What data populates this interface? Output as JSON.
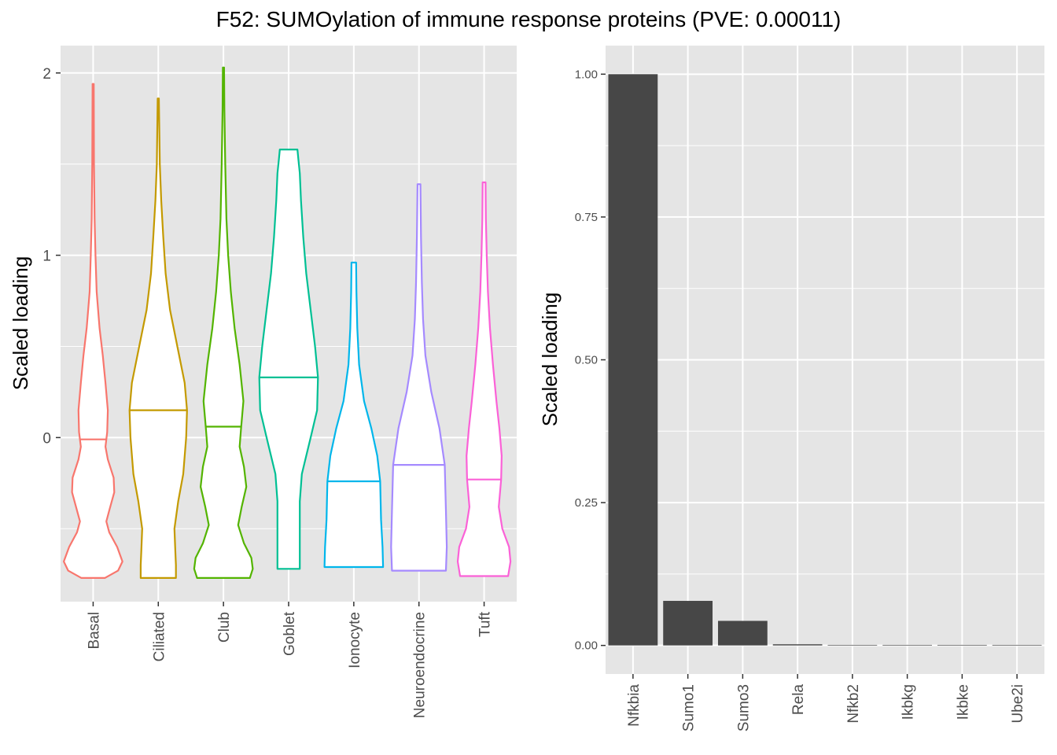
{
  "title": "F52: SUMOylation of immune response proteins (PVE: 0.00011)",
  "colors": {
    "panel_bg": "#e5e5e5",
    "grid": "#ffffff",
    "tick_text": "#4d4d4d",
    "bar_fill": "#474747",
    "Basal": "#f8766d",
    "Ciliated": "#c49a00",
    "Club": "#53b400",
    "Goblet": "#00c094",
    "Ionocyte": "#00b6eb",
    "Neuroendocrine": "#a58aff",
    "Tuft": "#fb61d7"
  },
  "chart_data": [
    {
      "type": "violin",
      "ylabel": "Scaled loading",
      "xlabel": "",
      "ylim": [
        -0.9,
        2.15
      ],
      "y_ticks": [
        "0",
        "1",
        "2"
      ],
      "grid": true,
      "categories": [
        "Basal",
        "Ciliated",
        "Club",
        "Goblet",
        "Ionocyte",
        "Neuroendocrine",
        "Tuft"
      ],
      "series": [
        {
          "category": "Basal",
          "min": -0.77,
          "max": 1.94,
          "median": -0.01,
          "profile": [
            [
              -0.77,
              0.4
            ],
            [
              -0.73,
              0.85
            ],
            [
              -0.68,
              1.0
            ],
            [
              -0.6,
              0.82
            ],
            [
              -0.52,
              0.55
            ],
            [
              -0.46,
              0.45
            ],
            [
              -0.4,
              0.55
            ],
            [
              -0.3,
              0.72
            ],
            [
              -0.22,
              0.7
            ],
            [
              -0.12,
              0.5
            ],
            [
              -0.05,
              0.42
            ],
            [
              0.03,
              0.48
            ],
            [
              0.15,
              0.5
            ],
            [
              0.3,
              0.42
            ],
            [
              0.45,
              0.33
            ],
            [
              0.6,
              0.22
            ],
            [
              0.8,
              0.12
            ],
            [
              1.0,
              0.08
            ],
            [
              1.2,
              0.05
            ],
            [
              1.5,
              0.03
            ],
            [
              1.94,
              0.02
            ]
          ]
        },
        {
          "category": "Ciliated",
          "min": -0.77,
          "max": 1.86,
          "median": 0.15,
          "profile": [
            [
              -0.77,
              0.6
            ],
            [
              -0.7,
              0.6
            ],
            [
              -0.62,
              0.58
            ],
            [
              -0.5,
              0.55
            ],
            [
              -0.35,
              0.68
            ],
            [
              -0.2,
              0.85
            ],
            [
              0.0,
              0.95
            ],
            [
              0.15,
              0.98
            ],
            [
              0.3,
              0.9
            ],
            [
              0.5,
              0.65
            ],
            [
              0.7,
              0.4
            ],
            [
              0.9,
              0.25
            ],
            [
              1.1,
              0.17
            ],
            [
              1.3,
              0.1
            ],
            [
              1.5,
              0.05
            ],
            [
              1.86,
              0.02
            ]
          ]
        },
        {
          "category": "Club",
          "min": -0.77,
          "max": 2.03,
          "median": 0.06,
          "profile": [
            [
              -0.77,
              0.9
            ],
            [
              -0.72,
              1.0
            ],
            [
              -0.66,
              0.95
            ],
            [
              -0.58,
              0.7
            ],
            [
              -0.48,
              0.5
            ],
            [
              -0.38,
              0.62
            ],
            [
              -0.27,
              0.78
            ],
            [
              -0.16,
              0.7
            ],
            [
              -0.05,
              0.55
            ],
            [
              0.05,
              0.6
            ],
            [
              0.2,
              0.68
            ],
            [
              0.4,
              0.55
            ],
            [
              0.6,
              0.38
            ],
            [
              0.8,
              0.25
            ],
            [
              1.0,
              0.16
            ],
            [
              1.2,
              0.1
            ],
            [
              1.5,
              0.06
            ],
            [
              1.8,
              0.03
            ],
            [
              2.03,
              0.02
            ]
          ]
        },
        {
          "category": "Goblet",
          "min": -0.72,
          "max": 1.58,
          "median": 0.33,
          "profile": [
            [
              -0.72,
              0.38
            ],
            [
              -0.55,
              0.38
            ],
            [
              -0.35,
              0.38
            ],
            [
              -0.2,
              0.45
            ],
            [
              0.0,
              0.75
            ],
            [
              0.15,
              0.97
            ],
            [
              0.33,
              1.0
            ],
            [
              0.5,
              0.9
            ],
            [
              0.7,
              0.75
            ],
            [
              0.9,
              0.6
            ],
            [
              1.1,
              0.5
            ],
            [
              1.3,
              0.42
            ],
            [
              1.45,
              0.38
            ],
            [
              1.53,
              0.33
            ],
            [
              1.58,
              0.3
            ]
          ]
        },
        {
          "category": "Ionocyte",
          "min": -0.71,
          "max": 0.96,
          "median": -0.24,
          "profile": [
            [
              -0.71,
              1.0
            ],
            [
              -0.6,
              0.98
            ],
            [
              -0.45,
              0.93
            ],
            [
              -0.24,
              0.9
            ],
            [
              -0.1,
              0.8
            ],
            [
              0.05,
              0.6
            ],
            [
              0.2,
              0.35
            ],
            [
              0.4,
              0.18
            ],
            [
              0.6,
              0.12
            ],
            [
              0.8,
              0.09
            ],
            [
              0.96,
              0.08
            ]
          ]
        },
        {
          "category": "Neuroendocrine",
          "min": -0.73,
          "max": 1.39,
          "median": -0.15,
          "profile": [
            [
              -0.73,
              0.92
            ],
            [
              -0.6,
              0.95
            ],
            [
              -0.4,
              0.92
            ],
            [
              -0.15,
              0.88
            ],
            [
              0.05,
              0.7
            ],
            [
              0.25,
              0.42
            ],
            [
              0.45,
              0.22
            ],
            [
              0.65,
              0.14
            ],
            [
              0.85,
              0.1
            ],
            [
              1.1,
              0.07
            ],
            [
              1.39,
              0.05
            ]
          ]
        },
        {
          "category": "Tuft",
          "min": -0.76,
          "max": 1.4,
          "median": -0.23,
          "profile": [
            [
              -0.76,
              0.82
            ],
            [
              -0.68,
              0.9
            ],
            [
              -0.6,
              0.85
            ],
            [
              -0.5,
              0.62
            ],
            [
              -0.38,
              0.5
            ],
            [
              -0.23,
              0.58
            ],
            [
              -0.1,
              0.6
            ],
            [
              0.05,
              0.52
            ],
            [
              0.2,
              0.42
            ],
            [
              0.4,
              0.3
            ],
            [
              0.6,
              0.2
            ],
            [
              0.8,
              0.13
            ],
            [
              1.0,
              0.09
            ],
            [
              1.2,
              0.06
            ],
            [
              1.4,
              0.05
            ]
          ]
        }
      ]
    },
    {
      "type": "bar",
      "ylabel": "Scaled loading",
      "xlabel": "",
      "ylim": [
        -0.05,
        1.05
      ],
      "y_ticks": [
        "0.00",
        "0.25",
        "0.50",
        "0.75",
        "1.00"
      ],
      "grid": true,
      "categories": [
        "Nfkbia",
        "Sumo1",
        "Sumo3",
        "Rela",
        "Nfkb2",
        "Ikbkg",
        "Ikbke",
        "Ube2i"
      ],
      "values": [
        1.0,
        0.078,
        0.043,
        0.002,
        0.001,
        0.001,
        0.001,
        0.001
      ]
    }
  ]
}
